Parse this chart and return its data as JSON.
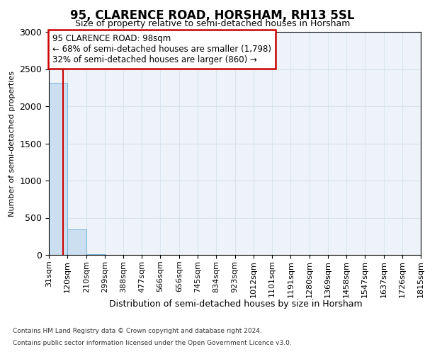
{
  "title": "95, CLARENCE ROAD, HORSHAM, RH13 5SL",
  "subtitle": "Size of property relative to semi-detached houses in Horsham",
  "xlabel": "Distribution of semi-detached houses by size in Horsham",
  "ylabel": "Number of semi-detached properties",
  "footer_line1": "Contains HM Land Registry data © Crown copyright and database right 2024.",
  "footer_line2": "Contains public sector information licensed under the Open Government Licence v3.0.",
  "annotation_title": "95 CLARENCE ROAD: 98sqm",
  "annotation_line1": "← 68% of semi-detached houses are smaller (1,798)",
  "annotation_line2": "32% of semi-detached houses are larger (860) →",
  "property_size": 98,
  "bin_edges": [
    31,
    120,
    210,
    299,
    388,
    477,
    566,
    656,
    745,
    834,
    923,
    1012,
    1101,
    1191,
    1280,
    1369,
    1458,
    1547,
    1637,
    1726,
    1815
  ],
  "bar_heights": [
    2310,
    345,
    5,
    2,
    1,
    1,
    1,
    0,
    0,
    0,
    0,
    0,
    0,
    0,
    0,
    0,
    0,
    0,
    0,
    0
  ],
  "bar_color": "#ccdff0",
  "bar_edge_color": "#6aaed6",
  "red_line_color": "#cc0000",
  "annotation_box_color": "#ffffff",
  "annotation_box_edge": "#cc0000",
  "ylim": [
    0,
    3000
  ],
  "grid_color": "#d8e4ee",
  "background_color": "#edf3f9",
  "title_fontsize": 12,
  "subtitle_fontsize": 9,
  "ylabel_fontsize": 8,
  "xlabel_fontsize": 9,
  "ytick_fontsize": 9,
  "xtick_fontsize": 8
}
